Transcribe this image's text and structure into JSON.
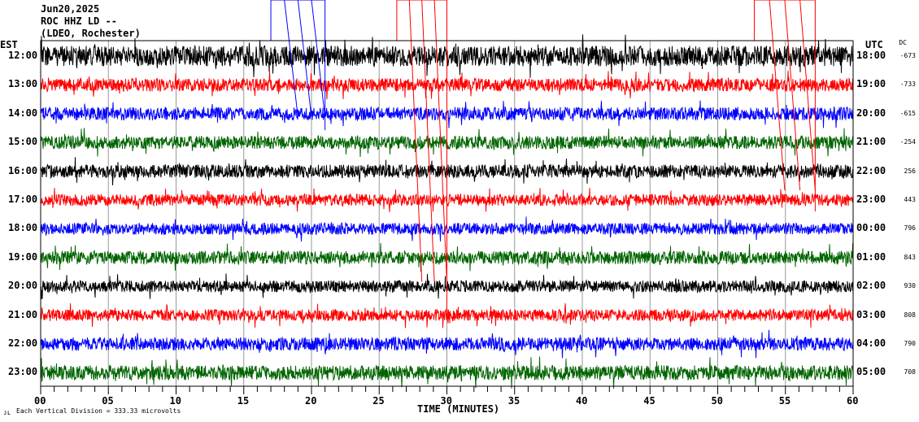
{
  "header": {
    "date": "Jun20,2025",
    "station": "ROC HHZ LD --",
    "network": "(LDEO, Rochester)",
    "left_zone": "EST",
    "right_zone": "UTC",
    "dc_label": "DC"
  },
  "footer": {
    "scale_text": "Each Vertical Division =  333.33 microvolts",
    "corner_mark": "ᴊʟ"
  },
  "chart_data": {
    "type": "line",
    "title": "ROC HHZ LD -- helicorder",
    "xlabel": "TIME (MINUTES)",
    "xlim": [
      0,
      60
    ],
    "x_ticks": [
      "00",
      "05",
      "10",
      "15",
      "20",
      "25",
      "30",
      "35",
      "40",
      "45",
      "50",
      "55",
      "60"
    ],
    "rows": [
      {
        "est": "12:00",
        "utc": "18:00",
        "dc": "-673",
        "color": "#000000",
        "amp": 1.4
      },
      {
        "est": "13:00",
        "utc": "19:00",
        "dc": "-733",
        "color": "#ff0000",
        "amp": 0.9
      },
      {
        "est": "14:00",
        "utc": "20:00",
        "dc": "-615",
        "color": "#0000ff",
        "amp": 0.9
      },
      {
        "est": "15:00",
        "utc": "21:00",
        "dc": "-254",
        "color": "#006400",
        "amp": 0.9
      },
      {
        "est": "16:00",
        "utc": "22:00",
        "dc": "256",
        "color": "#000000",
        "amp": 0.9
      },
      {
        "est": "17:00",
        "utc": "23:00",
        "dc": "443",
        "color": "#ff0000",
        "amp": 0.8
      },
      {
        "est": "18:00",
        "utc": "00:00",
        "dc": "796",
        "color": "#0000ff",
        "amp": 0.8
      },
      {
        "est": "19:00",
        "utc": "01:00",
        "dc": "843",
        "color": "#006400",
        "amp": 0.9
      },
      {
        "est": "20:00",
        "utc": "02:00",
        "dc": "930",
        "color": "#000000",
        "amp": 0.8
      },
      {
        "est": "21:00",
        "utc": "03:00",
        "dc": "808",
        "color": "#ff0000",
        "amp": 0.8
      },
      {
        "est": "22:00",
        "utc": "04:00",
        "dc": "790",
        "color": "#0000ff",
        "amp": 0.9
      },
      {
        "est": "23:00",
        "utc": "05:00",
        "dc": "708",
        "color": "#006400",
        "amp": 1.0
      }
    ],
    "event_markers": [
      {
        "color": "#0000ff",
        "start_min": 17,
        "end_min": 21
      },
      {
        "color": "#ff0000",
        "start_min": 26.3,
        "end_min": 30
      },
      {
        "color": "#ff0000",
        "start_min": 52.7,
        "end_min": 57.2
      }
    ],
    "grid": true
  }
}
